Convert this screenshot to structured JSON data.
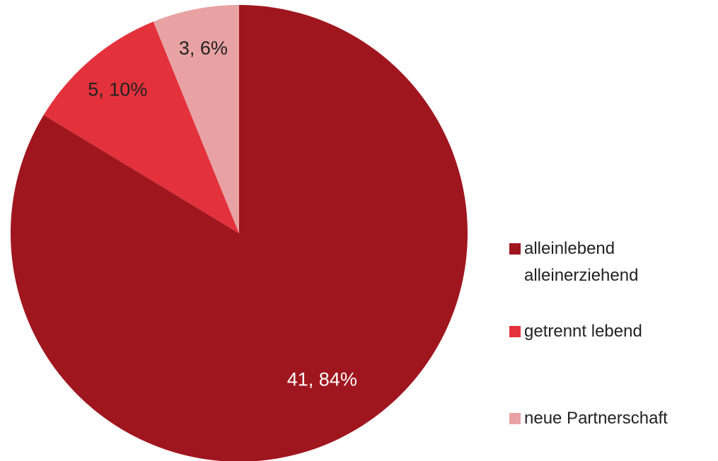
{
  "chart_data": {
    "type": "pie",
    "categories": [
      "alleinlebend alleinerziehend",
      "getrennt lebend",
      "neue Partnerschaft"
    ],
    "values": [
      41,
      5,
      3
    ],
    "value_labels": [
      "41, 84%",
      "5, 10%",
      "3, 6%"
    ],
    "colors": [
      "#a0161e",
      "#e3323c",
      "#e8a2a4"
    ],
    "legend": "right"
  }
}
